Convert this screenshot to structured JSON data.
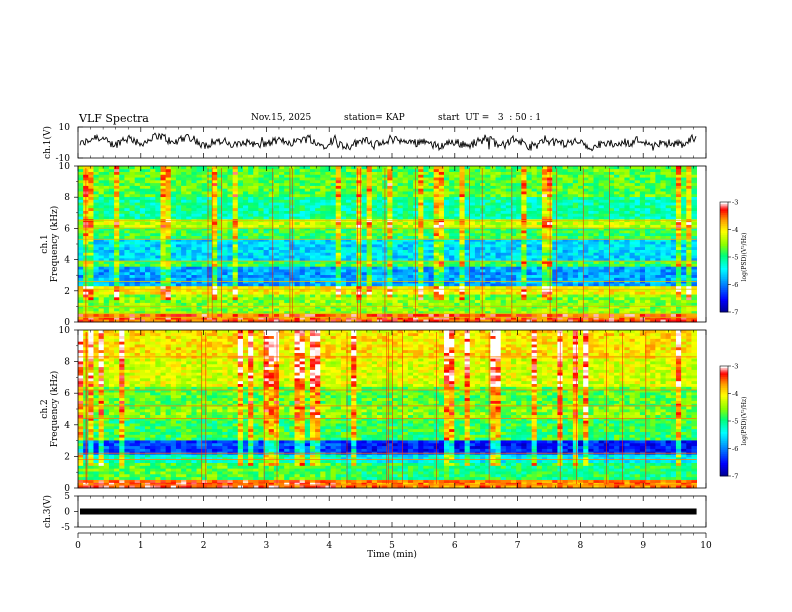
{
  "header": {
    "title": "VLF Spectra",
    "date": "Nov.15, 2025",
    "station": "station= KAP",
    "start": "start  UT =   3  : 50 : 1"
  },
  "chart_data": [
    {
      "type": "line",
      "name": "ch1-waveform",
      "ylabel": "ch.1(V)",
      "ylim": [
        -10,
        10
      ],
      "yticks": [
        "10",
        "-10"
      ],
      "xlim": [
        0,
        10
      ],
      "xlabel": "",
      "description": "noise waveform"
    },
    {
      "type": "heatmap",
      "name": "ch1-spectrogram",
      "ylabel": "ch.1",
      "ylabel2": "Frequency (kHz)",
      "ylim": [
        0,
        10
      ],
      "yticks": [
        "0",
        "2",
        "4",
        "6",
        "8",
        "10"
      ],
      "xlim": [
        0,
        9.85
      ],
      "colorbar": {
        "label": "log(PSD)(V²/Hz)",
        "range": [
          -7,
          -3
        ],
        "ticks": [
          "-3",
          "-4",
          "-5",
          "-6",
          "-7"
        ],
        "colors": [
          "#0000a0",
          "#0000ff",
          "#00a0ff",
          "#00ffff",
          "#00ff60",
          "#a0ff00",
          "#ffff00",
          "#ffa000",
          "#ff0000",
          "#ffffff"
        ]
      }
    },
    {
      "type": "heatmap",
      "name": "ch2-spectrogram",
      "ylabel": "ch.2",
      "ylabel2": "Frequency (kHz)",
      "ylim": [
        0,
        10
      ],
      "yticks": [
        "0",
        "2",
        "4",
        "6",
        "8",
        "10"
      ],
      "xlim": [
        0,
        9.85
      ],
      "colorbar": {
        "label": "log(PSD)(V²/Hz)",
        "range": [
          -7,
          -3
        ],
        "ticks": [
          "-3",
          "-4",
          "-5",
          "-6",
          "-7"
        ]
      }
    },
    {
      "type": "line",
      "name": "ch3-waveform",
      "ylabel": "ch.3(V)",
      "ylim": [
        -5,
        5
      ],
      "yticks": [
        "5",
        "0",
        "-5"
      ],
      "value": 0,
      "xlim": [
        0,
        10
      ],
      "xlabel": "Time  (min)",
      "xticks": [
        "0",
        "1",
        "2",
        "3",
        "4",
        "5",
        "6",
        "7",
        "8",
        "9",
        "10"
      ]
    }
  ]
}
